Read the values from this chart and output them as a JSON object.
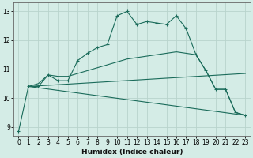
{
  "xlabel": "Humidex (Indice chaleur)",
  "bg_color": "#d4ece6",
  "line_color": "#1a6b5a",
  "grid_color": "#b8d4cc",
  "xlim": [
    -0.5,
    23.5
  ],
  "ylim": [
    8.7,
    13.3
  ],
  "yticks": [
    9,
    10,
    11,
    12,
    13
  ],
  "xticks": [
    0,
    1,
    2,
    3,
    4,
    5,
    6,
    7,
    8,
    9,
    10,
    11,
    12,
    13,
    14,
    15,
    16,
    17,
    18,
    19,
    20,
    21,
    22,
    23
  ],
  "line_marker": {
    "x": [
      0,
      1,
      2,
      3,
      4,
      5,
      6,
      7,
      8,
      9,
      10,
      11,
      12,
      13,
      14,
      15,
      16,
      17,
      18,
      19,
      20,
      21,
      22,
      23
    ],
    "y": [
      8.85,
      10.4,
      10.4,
      10.8,
      10.6,
      10.6,
      11.3,
      11.55,
      11.75,
      11.85,
      12.85,
      13.0,
      12.55,
      12.65,
      12.6,
      12.55,
      12.85,
      12.4,
      11.5,
      10.95,
      10.3,
      10.3,
      9.5,
      9.4
    ]
  },
  "line_upper": {
    "x": [
      1,
      2,
      3,
      4,
      5,
      6,
      7,
      8,
      9,
      10,
      11,
      12,
      13,
      14,
      15,
      16,
      17,
      18,
      19,
      20,
      21,
      22,
      23
    ],
    "y": [
      10.4,
      10.5,
      10.8,
      10.75,
      10.75,
      10.85,
      10.95,
      11.05,
      11.15,
      11.25,
      11.35,
      11.4,
      11.45,
      11.5,
      11.55,
      11.6,
      11.55,
      11.5,
      10.95,
      10.3,
      10.3,
      9.5,
      9.4
    ]
  },
  "line_mid": {
    "x": [
      1,
      23
    ],
    "y": [
      10.4,
      10.85
    ]
  },
  "line_low": {
    "x": [
      1,
      23
    ],
    "y": [
      10.4,
      9.4
    ]
  }
}
